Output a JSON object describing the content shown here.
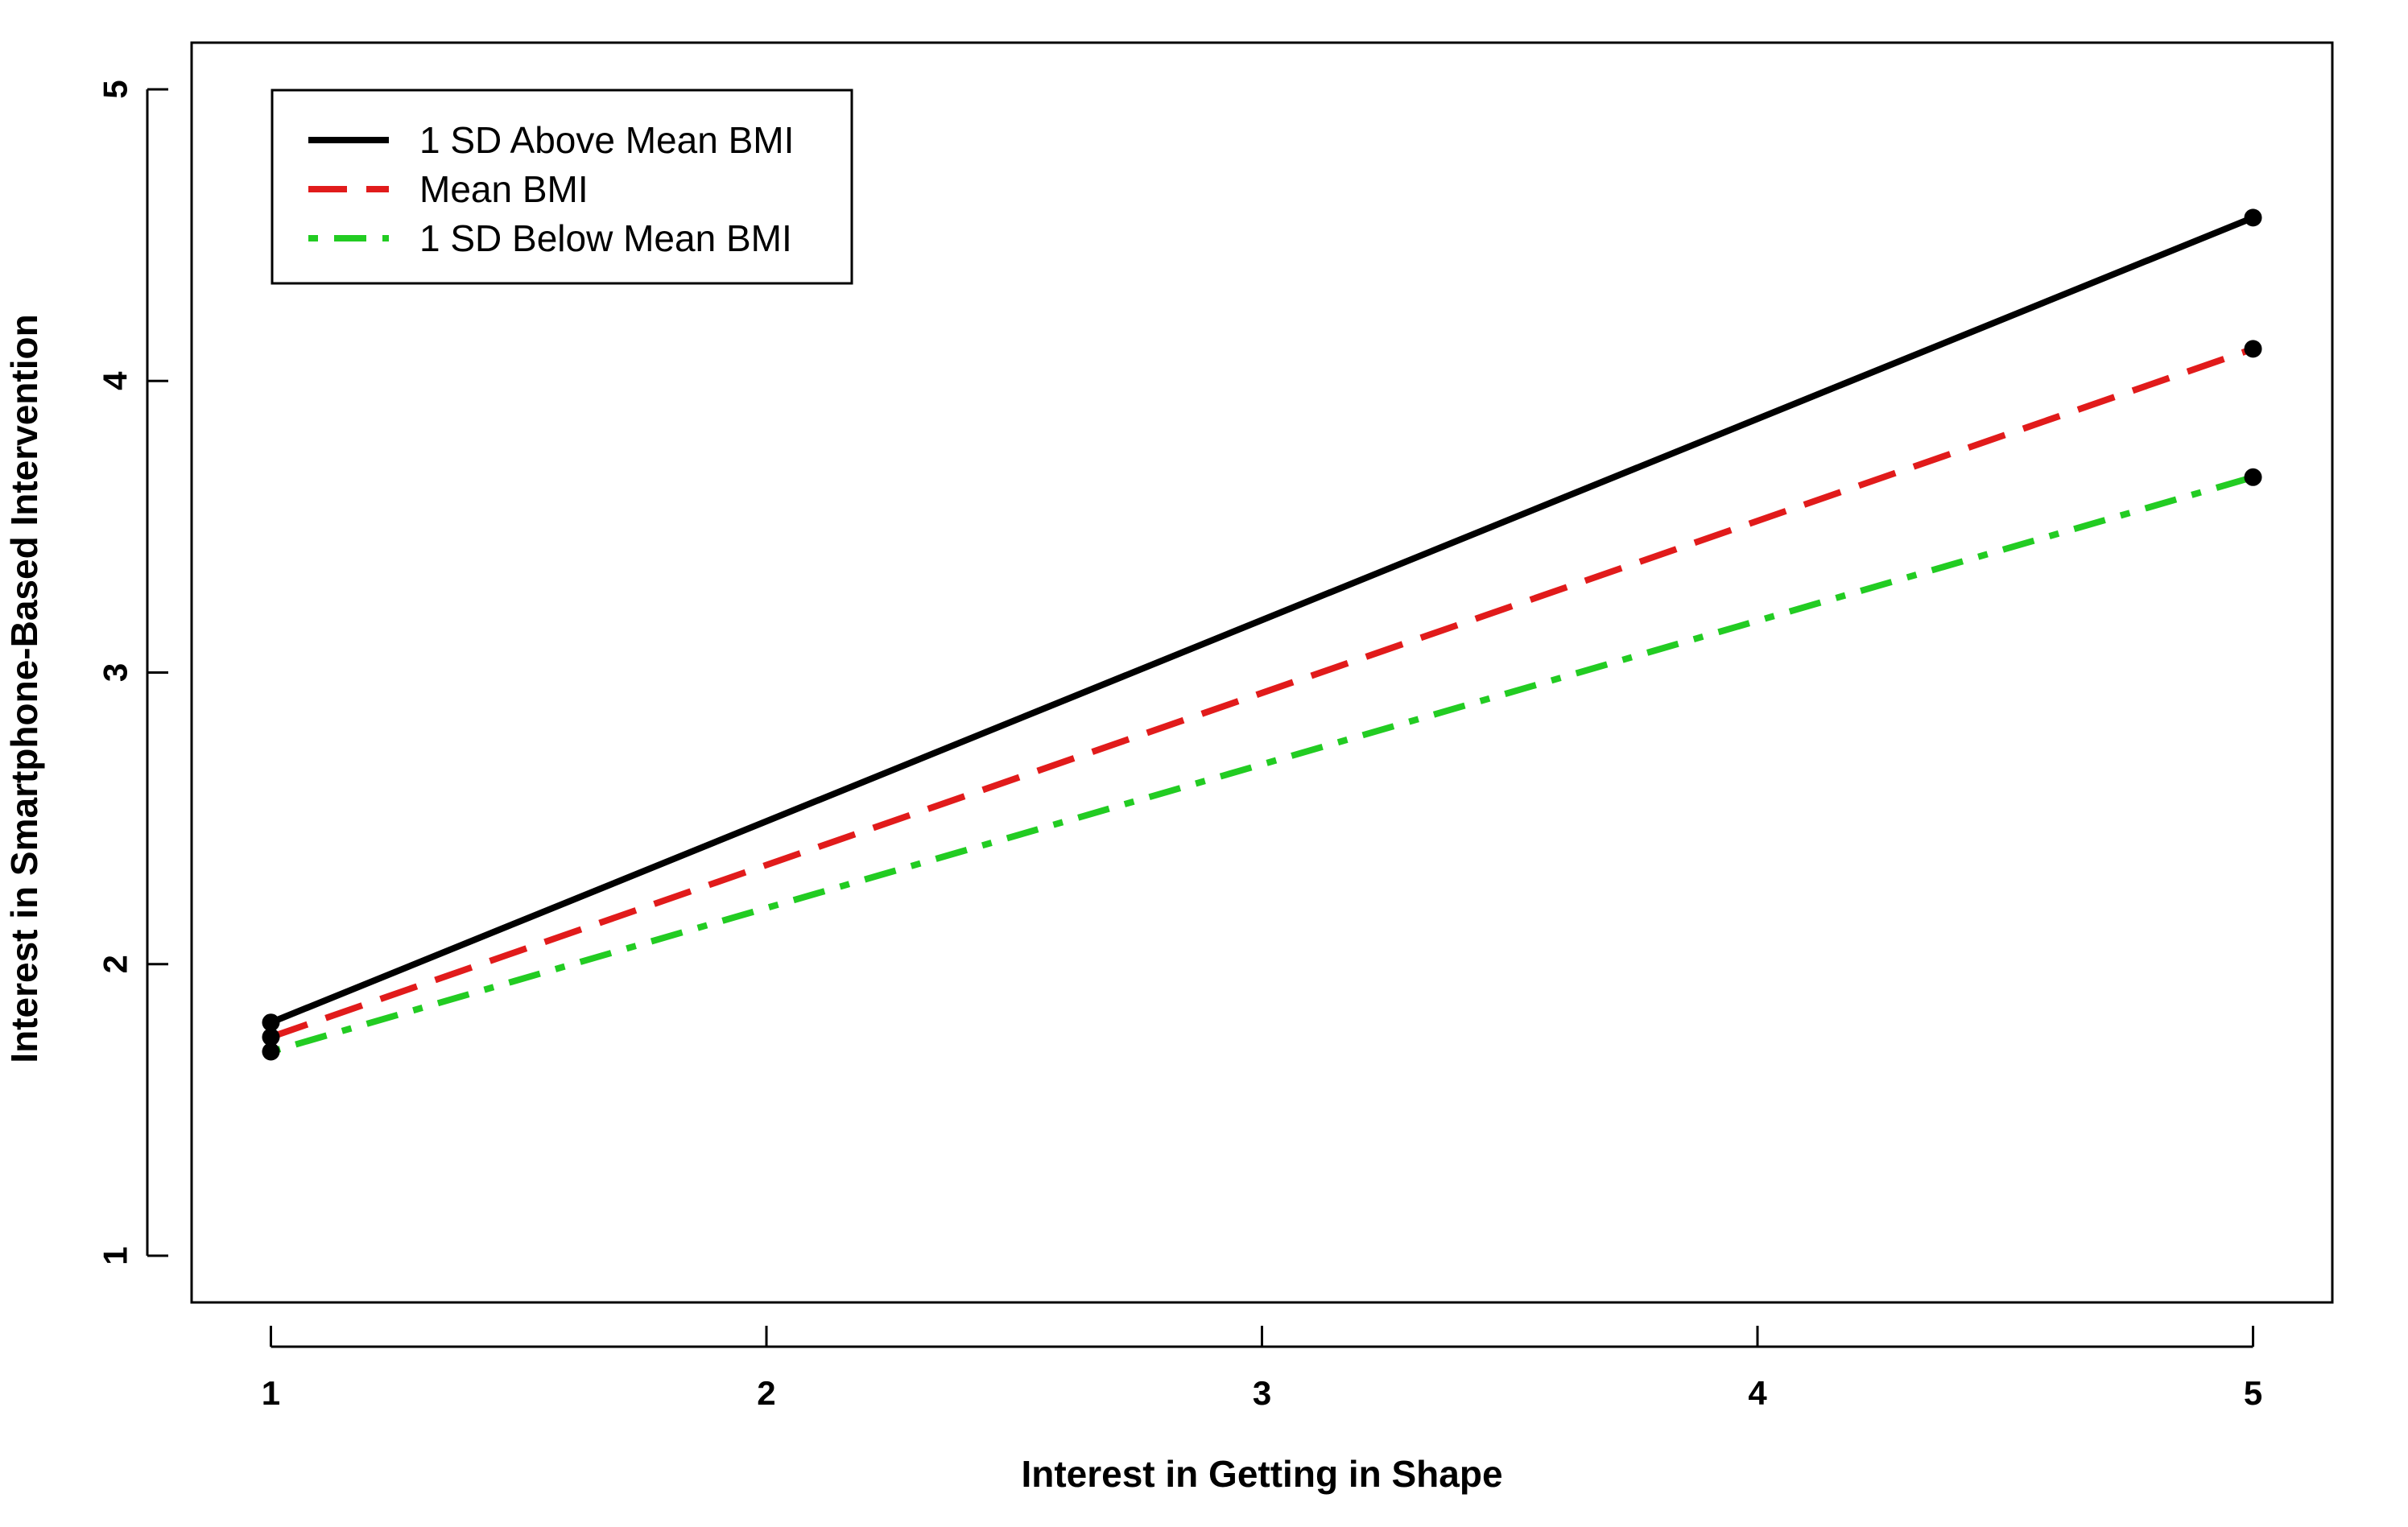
{
  "chart_data": {
    "type": "line",
    "title": "",
    "xlabel": "Interest in Getting in Shape",
    "ylabel": "Interest in Smartphone-Based Intervention",
    "xlim": [
      0.84,
      5.16
    ],
    "ylim": [
      0.84,
      5.16
    ],
    "xticks": [
      1,
      2,
      3,
      4,
      5
    ],
    "yticks": [
      1,
      2,
      3,
      4,
      5
    ],
    "x": [
      1,
      5
    ],
    "series": [
      {
        "name": "1 SD Above Mean BMI",
        "values": [
          1.8,
          4.56
        ],
        "color": "#000000",
        "dash": "solid"
      },
      {
        "name": "Mean BMI",
        "values": [
          1.75,
          4.11
        ],
        "color": "#e11b1b",
        "dash": "dashed"
      },
      {
        "name": "1 SD Below Mean BMI",
        "values": [
          1.7,
          3.67
        ],
        "color": "#22cc22",
        "dash": "dotdash"
      }
    ],
    "markers": "filled-circle-black",
    "legend_position": "top-left",
    "grid": false
  }
}
